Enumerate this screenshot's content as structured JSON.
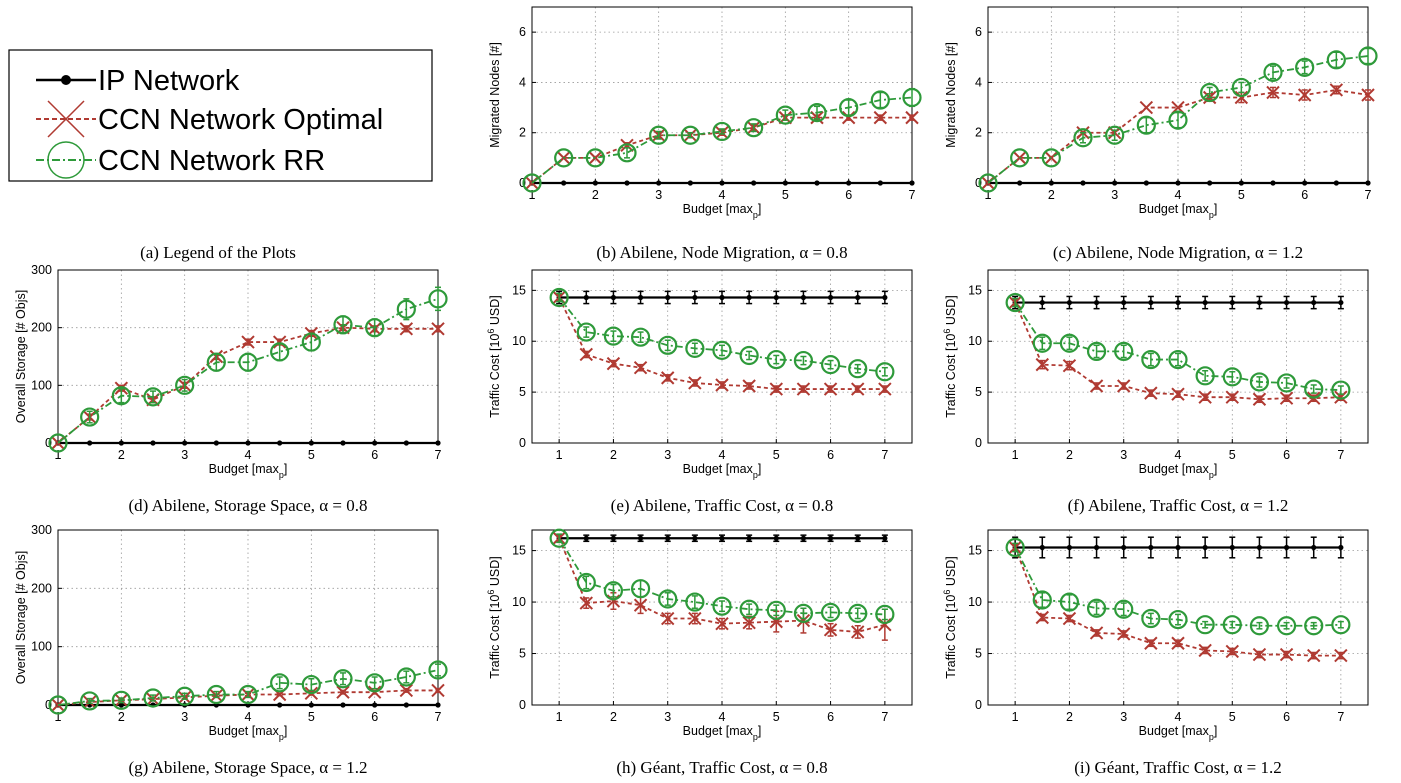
{
  "legend": {
    "caption": "(a)  Legend of the Plots",
    "entries": [
      {
        "label": "IP Network",
        "color": "#000000",
        "marker": "dot",
        "dash": "solid"
      },
      {
        "label": "CCN Network Optimal",
        "color": "#b03a32",
        "marker": "x",
        "dash": "dashed"
      },
      {
        "label": "CCN Network RR",
        "color": "#2e9a3a",
        "marker": "circle",
        "dash": "dashdot"
      }
    ]
  },
  "chart_data": [
    {
      "id": "b",
      "type": "line",
      "caption": "(b)  Abilene, Node Migration, α = 0.8",
      "xlabel": "Budget [max_p]",
      "ylabel": "Migrated Nodes [#]",
      "xlim": [
        1,
        7
      ],
      "ylim": [
        0,
        7
      ],
      "xticks": [
        1,
        2,
        3,
        4,
        5,
        6,
        7
      ],
      "yticks": [
        0,
        2,
        4,
        6
      ],
      "grid": true,
      "x": [
        1,
        1.5,
        2,
        2.5,
        3,
        3.5,
        4,
        4.5,
        5,
        5.5,
        6,
        6.5,
        7
      ],
      "series": [
        {
          "name": "IP Network",
          "values": [
            0,
            0,
            0,
            0,
            0,
            0,
            0,
            0,
            0,
            0,
            0,
            0,
            0
          ]
        },
        {
          "name": "CCN Network Optimal",
          "values": [
            0,
            1,
            1,
            1.5,
            1.9,
            1.9,
            2,
            2.2,
            2.6,
            2.6,
            2.6,
            2.6,
            2.6
          ],
          "err": [
            0,
            0,
            0,
            0.1,
            0.1,
            0.1,
            0.1,
            0.1,
            0.1,
            0.1,
            0.1,
            0.1,
            0.1
          ]
        },
        {
          "name": "CCN Network RR",
          "values": [
            0,
            1,
            1,
            1.2,
            1.9,
            1.9,
            2.05,
            2.2,
            2.7,
            2.8,
            3,
            3.3,
            3.4
          ],
          "err": [
            0,
            0,
            0,
            0.2,
            0.15,
            0.1,
            0.1,
            0.15,
            0.2,
            0.25,
            0.3,
            0.3,
            0.35
          ]
        }
      ]
    },
    {
      "id": "c",
      "type": "line",
      "caption": "(c)  Abilene, Node Migration, α = 1.2",
      "xlabel": "Budget [max_p]",
      "ylabel": "Migrated Nodes [#]",
      "xlim": [
        1,
        7
      ],
      "ylim": [
        0,
        7
      ],
      "xticks": [
        1,
        2,
        3,
        4,
        5,
        6,
        7
      ],
      "yticks": [
        0,
        2,
        4,
        6
      ],
      "grid": true,
      "x": [
        1,
        1.5,
        2,
        2.5,
        3,
        3.5,
        4,
        4.5,
        5,
        5.5,
        6,
        6.5,
        7
      ],
      "series": [
        {
          "name": "IP Network",
          "values": [
            0,
            0,
            0,
            0,
            0,
            0,
            0,
            0,
            0,
            0,
            0,
            0,
            0
          ]
        },
        {
          "name": "CCN Network Optimal",
          "values": [
            0,
            1,
            1,
            2,
            2,
            3,
            3,
            3.4,
            3.4,
            3.6,
            3.5,
            3.7,
            3.5
          ],
          "err": [
            0,
            0,
            0,
            0,
            0,
            0,
            0,
            0.15,
            0.2,
            0.2,
            0.2,
            0.15,
            0.2
          ]
        },
        {
          "name": "CCN Network RR",
          "values": [
            0,
            1,
            1,
            1.8,
            1.9,
            2.3,
            2.5,
            3.6,
            3.8,
            4.4,
            4.6,
            4.9,
            5.05
          ],
          "err": [
            0,
            0,
            0,
            0.2,
            0.2,
            0.3,
            0.3,
            0.2,
            0.2,
            0.25,
            0.25,
            0.3,
            0.3
          ]
        }
      ]
    },
    {
      "id": "d",
      "type": "line",
      "caption": "(d)  Abilene, Storage Space, α = 0.8",
      "xlabel": "Budget [max_p]",
      "ylabel": "Overall Storage [# Objs]",
      "xlim": [
        1,
        7
      ],
      "ylim": [
        0,
        300
      ],
      "xticks": [
        1,
        2,
        3,
        4,
        5,
        6,
        7
      ],
      "yticks": [
        0,
        100,
        200,
        300
      ],
      "grid": true,
      "x": [
        1,
        1.5,
        2,
        2.5,
        3,
        3.5,
        4,
        4.5,
        5,
        5.5,
        6,
        6.5,
        7
      ],
      "series": [
        {
          "name": "IP Network",
          "values": [
            0,
            0,
            0,
            0,
            0,
            0,
            0,
            0,
            0,
            0,
            0,
            0,
            0
          ]
        },
        {
          "name": "CCN Network Optimal",
          "values": [
            0,
            45,
            95,
            75,
            100,
            150,
            175,
            175,
            190,
            200,
            198,
            198,
            198
          ],
          "err": [
            0,
            5,
            5,
            5,
            5,
            5,
            5,
            5,
            5,
            5,
            5,
            5,
            5
          ]
        },
        {
          "name": "CCN Network RR",
          "values": [
            0,
            45,
            82,
            80,
            100,
            140,
            140,
            158,
            175,
            205,
            200,
            232,
            250
          ],
          "err": [
            0,
            10,
            12,
            10,
            10,
            15,
            15,
            15,
            15,
            15,
            15,
            18,
            20
          ]
        }
      ]
    },
    {
      "id": "e",
      "type": "line",
      "caption": "(e)  Abilene, Traffic Cost, α = 0.8",
      "xlabel": "Budget [max_p]",
      "ylabel": "Traffic Cost [10^6 USD]",
      "xlim": [
        0.5,
        7.5
      ],
      "ylim": [
        0,
        17
      ],
      "xticks": [
        1,
        2,
        3,
        4,
        5,
        6,
        7
      ],
      "yticks": [
        0,
        5,
        10,
        15
      ],
      "grid": true,
      "x": [
        1,
        1.5,
        2,
        2.5,
        3,
        3.5,
        4,
        4.5,
        5,
        5.5,
        6,
        6.5,
        7
      ],
      "series": [
        {
          "name": "IP Network",
          "values": [
            14.3,
            14.3,
            14.3,
            14.3,
            14.3,
            14.3,
            14.3,
            14.3,
            14.3,
            14.3,
            14.3,
            14.3,
            14.3
          ],
          "err": [
            0.6,
            0.6,
            0.6,
            0.6,
            0.6,
            0.6,
            0.6,
            0.6,
            0.6,
            0.6,
            0.6,
            0.6,
            0.6
          ]
        },
        {
          "name": "CCN Network Optimal",
          "values": [
            14.3,
            8.7,
            7.8,
            7.4,
            6.4,
            5.9,
            5.7,
            5.6,
            5.3,
            5.3,
            5.3,
            5.3,
            5.3
          ],
          "err": [
            0.3,
            0.3,
            0.3,
            0.3,
            0.3,
            0.3,
            0.3,
            0.3,
            0.3,
            0.3,
            0.3,
            0.3,
            0.3
          ]
        },
        {
          "name": "CCN Network RR",
          "values": [
            14.3,
            10.9,
            10.5,
            10.4,
            9.6,
            9.3,
            9.1,
            8.6,
            8.2,
            8.1,
            7.7,
            7.3,
            7.0
          ],
          "err": [
            0.4,
            0.5,
            0.5,
            0.5,
            0.5,
            0.5,
            0.5,
            0.4,
            0.4,
            0.4,
            0.4,
            0.4,
            0.4
          ]
        }
      ]
    },
    {
      "id": "f",
      "type": "line",
      "caption": "(f)  Abilene, Traffic Cost, α = 1.2",
      "xlabel": "Budget [max_p]",
      "ylabel": "Traffic Cost [10^6 USD]",
      "xlim": [
        0.5,
        7.5
      ],
      "ylim": [
        0,
        17
      ],
      "xticks": [
        1,
        2,
        3,
        4,
        5,
        6,
        7
      ],
      "yticks": [
        0,
        5,
        10,
        15
      ],
      "grid": true,
      "x": [
        1,
        1.5,
        2,
        2.5,
        3,
        3.5,
        4,
        4.5,
        5,
        5.5,
        6,
        6.5,
        7
      ],
      "series": [
        {
          "name": "IP Network",
          "values": [
            13.8,
            13.8,
            13.8,
            13.8,
            13.8,
            13.8,
            13.8,
            13.8,
            13.8,
            13.8,
            13.8,
            13.8,
            13.8
          ],
          "err": [
            0.6,
            0.6,
            0.6,
            0.6,
            0.6,
            0.6,
            0.6,
            0.6,
            0.6,
            0.6,
            0.6,
            0.6,
            0.6
          ]
        },
        {
          "name": "CCN Network Optimal",
          "values": [
            13.8,
            7.7,
            7.6,
            5.6,
            5.6,
            4.9,
            4.8,
            4.5,
            4.5,
            4.3,
            4.4,
            4.4,
            4.5
          ],
          "err": [
            0.3,
            0.4,
            0.4,
            0.3,
            0.3,
            0.3,
            0.3,
            0.3,
            0.3,
            0.3,
            0.3,
            0.3,
            0.3
          ]
        },
        {
          "name": "CCN Network RR",
          "values": [
            13.8,
            9.8,
            9.8,
            9.0,
            9.0,
            8.2,
            8.2,
            6.6,
            6.5,
            6.0,
            5.9,
            5.3,
            5.2
          ],
          "err": [
            0.4,
            0.6,
            0.6,
            0.6,
            0.6,
            0.6,
            0.6,
            0.5,
            0.5,
            0.5,
            0.5,
            0.4,
            0.4
          ]
        }
      ]
    },
    {
      "id": "g",
      "type": "line",
      "caption": "(g)  Abilene, Storage Space, α = 1.2",
      "xlabel": "Budget [max_p]",
      "ylabel": "Overall Storage [# Objs]",
      "xlim": [
        1,
        7
      ],
      "ylim": [
        0,
        300
      ],
      "xticks": [
        1,
        2,
        3,
        4,
        5,
        6,
        7
      ],
      "yticks": [
        0,
        100,
        200,
        300
      ],
      "grid": true,
      "x": [
        1,
        1.5,
        2,
        2.5,
        3,
        3.5,
        4,
        4.5,
        5,
        5.5,
        6,
        6.5,
        7
      ],
      "series": [
        {
          "name": "IP Network",
          "values": [
            0,
            0,
            0,
            0,
            0,
            0,
            0,
            0,
            0,
            0,
            0,
            0,
            0
          ]
        },
        {
          "name": "CCN Network Optimal",
          "values": [
            0,
            5,
            8,
            10,
            13,
            16,
            18,
            18,
            20,
            22,
            22,
            25,
            25
          ],
          "err": [
            0,
            2,
            2,
            2,
            2,
            2,
            2,
            2,
            3,
            3,
            3,
            3,
            3
          ]
        },
        {
          "name": "CCN Network RR",
          "values": [
            0,
            7,
            8,
            12,
            15,
            18,
            18,
            38,
            35,
            45,
            38,
            48,
            60
          ],
          "err": [
            0,
            4,
            4,
            5,
            5,
            5,
            5,
            10,
            10,
            10,
            10,
            10,
            10
          ]
        }
      ]
    },
    {
      "id": "h",
      "type": "line",
      "caption": "(h)  Géant, Traffic Cost, α = 0.8",
      "xlabel": "Budget [max_p]",
      "ylabel": "Traffic Cost [10^6 USD]",
      "xlim": [
        0.5,
        7.5
      ],
      "ylim": [
        0,
        17
      ],
      "xticks": [
        1,
        2,
        3,
        4,
        5,
        6,
        7
      ],
      "yticks": [
        0,
        5,
        10,
        15
      ],
      "grid": true,
      "x": [
        1,
        1.5,
        2,
        2.5,
        3,
        3.5,
        4,
        4.5,
        5,
        5.5,
        6,
        6.5,
        7
      ],
      "series": [
        {
          "name": "IP Network",
          "values": [
            16.2,
            16.2,
            16.2,
            16.2,
            16.2,
            16.2,
            16.2,
            16.2,
            16.2,
            16.2,
            16.2,
            16.2,
            16.2
          ],
          "err": [
            0.3,
            0.3,
            0.3,
            0.3,
            0.3,
            0.3,
            0.3,
            0.3,
            0.3,
            0.3,
            0.3,
            0.3,
            0.3
          ]
        },
        {
          "name": "CCN Network Optimal",
          "values": [
            16.2,
            9.9,
            10.1,
            9.7,
            8.4,
            8.4,
            7.9,
            8.0,
            8.1,
            8.2,
            7.3,
            7.1,
            7.8
          ],
          "err": [
            0.3,
            0.5,
            0.8,
            0.8,
            0.5,
            0.5,
            0.5,
            0.6,
            1.0,
            1.2,
            0.6,
            0.6,
            1.5
          ]
        },
        {
          "name": "CCN Network RR",
          "values": [
            16.2,
            11.9,
            11.1,
            11.3,
            10.3,
            10.0,
            9.6,
            9.3,
            9.2,
            8.9,
            9.0,
            8.9,
            8.8
          ],
          "err": [
            0.4,
            0.6,
            0.6,
            0.8,
            0.6,
            0.6,
            0.5,
            0.5,
            0.5,
            0.5,
            0.5,
            0.5,
            0.5
          ]
        }
      ]
    },
    {
      "id": "i",
      "type": "line",
      "caption": "(i)  Géant, Traffic Cost, α = 1.2",
      "xlabel": "Budget [max_p]",
      "ylabel": "Traffic Cost [10^6 USD]",
      "xlim": [
        0.5,
        7.5
      ],
      "ylim": [
        0,
        17
      ],
      "xticks": [
        1,
        2,
        3,
        4,
        5,
        6,
        7
      ],
      "yticks": [
        0,
        5,
        10,
        15
      ],
      "grid": true,
      "x": [
        1,
        1.5,
        2,
        2.5,
        3,
        3.5,
        4,
        4.5,
        5,
        5.5,
        6,
        6.5,
        7
      ],
      "series": [
        {
          "name": "IP Network",
          "values": [
            15.3,
            15.3,
            15.3,
            15.3,
            15.3,
            15.3,
            15.3,
            15.3,
            15.3,
            15.3,
            15.3,
            15.3,
            15.3
          ],
          "err": [
            1.0,
            1.0,
            1.0,
            1.0,
            1.0,
            1.0,
            1.0,
            1.0,
            1.0,
            1.0,
            1.0,
            1.0,
            1.0
          ]
        },
        {
          "name": "CCN Network Optimal",
          "values": [
            15.3,
            8.5,
            8.4,
            7.0,
            6.9,
            6.0,
            6.0,
            5.3,
            5.2,
            4.9,
            4.9,
            4.8,
            4.8
          ],
          "err": [
            0.3,
            0.3,
            0.3,
            0.3,
            0.3,
            0.3,
            0.3,
            0.3,
            0.3,
            0.3,
            0.3,
            0.3,
            0.3
          ]
        },
        {
          "name": "CCN Network RR",
          "values": [
            15.3,
            10.2,
            10.0,
            9.4,
            9.3,
            8.4,
            8.3,
            7.8,
            7.8,
            7.7,
            7.7,
            7.7,
            7.8
          ],
          "err": [
            0.4,
            0.7,
            0.7,
            0.6,
            0.6,
            0.5,
            0.5,
            0.3,
            0.3,
            0.3,
            0.3,
            0.3,
            0.3
          ]
        }
      ]
    }
  ]
}
